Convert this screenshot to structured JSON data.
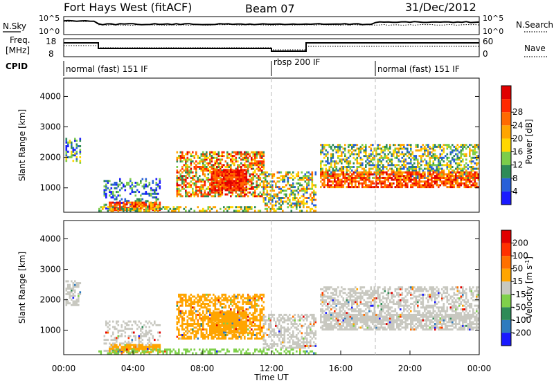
{
  "header": {
    "station": "Fort Hays West (fitACF)",
    "beam": "Beam 07",
    "date": "31/Dec/2012"
  },
  "top_strip": {
    "left_label": "N.Sky",
    "right_label": "N.Search",
    "left_ticks": [
      "10^5",
      "10^0"
    ],
    "right_ticks": [
      "10^5",
      "10^0"
    ]
  },
  "freq_strip": {
    "left_label_1": "Freq.",
    "left_label_2": "[MHz]",
    "right_label": "Nave",
    "left_ticks": [
      "18",
      "8"
    ],
    "right_ticks": [
      "60",
      "0"
    ]
  },
  "cpid": {
    "label": "CPID",
    "segments": [
      {
        "start_hour": 0,
        "text": "normal (fast) 151 IF"
      },
      {
        "start_hour": 12,
        "text": "rbsp 200 IF"
      },
      {
        "start_hour": 18,
        "text": "normal (fast) 151 IF"
      }
    ]
  },
  "chart_data": [
    {
      "type": "heatmap",
      "name": "power-panel",
      "ylabel": "Slant Range [km]",
      "yticks": [
        1000,
        2000,
        3000,
        4000
      ],
      "ylim": [
        200,
        4600
      ],
      "xlim": [
        0,
        24
      ],
      "colorbar": {
        "label": "Power [dB]",
        "ticks": [
          "4",
          "8",
          "12",
          "16",
          "20",
          "24",
          "28"
        ],
        "colors": [
          "#1a1aff",
          "#2860d8",
          "#2e8b57",
          "#7ccd4a",
          "#ffd700",
          "#ffa500",
          "#ff6a00",
          "#ff2a00",
          "#e00000"
        ]
      }
    },
    {
      "type": "heatmap",
      "name": "velocity-panel",
      "ylabel": "Slant Range [km]",
      "yticks": [
        1000,
        2000,
        3000,
        4000
      ],
      "ylim": [
        200,
        4600
      ],
      "xlim": [
        0,
        24
      ],
      "xlabel": "Time UT",
      "xticks": [
        "00:00",
        "04:00",
        "08:00",
        "12:00",
        "16:00",
        "20:00",
        "00:00"
      ],
      "colorbar": {
        "label": "Velocity [m s",
        "label_sup": "-1",
        "label_end": "]",
        "ticks": [
          "200",
          "100",
          "50",
          "15",
          "-15",
          "-50",
          "-100",
          "-200"
        ],
        "colors": [
          "#1a1aff",
          "#2e7bbf",
          "#2e8b57",
          "#7fd04b",
          "#c8c8c0",
          "#ffa500",
          "#ff7000",
          "#ff3000",
          "#e00000"
        ]
      }
    }
  ]
}
